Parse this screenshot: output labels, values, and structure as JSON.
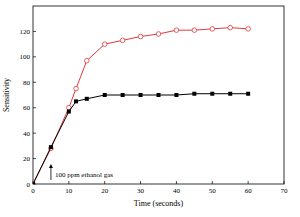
{
  "chart_data": {
    "type": "line",
    "x_label": "Time (seconds)",
    "y_label": "Sensitivity",
    "x": [
      0,
      5,
      10,
      12,
      15,
      20,
      25,
      30,
      35,
      40,
      45,
      50,
      55,
      60
    ],
    "series": [
      {
        "color": "#e03a3a",
        "marker": "open_circle",
        "line_style": "solid",
        "values": [
          0,
          28,
          60,
          75,
          97,
          110,
          113,
          116,
          118,
          121,
          121,
          122,
          123,
          122
        ]
      },
      {
        "color": "#000000",
        "marker": "square",
        "line_style": "solid",
        "values": [
          0,
          29,
          57,
          65,
          67,
          70,
          70,
          70,
          70,
          70,
          71,
          71,
          71,
          71
        ]
      }
    ],
    "xlim": [
      0,
      70
    ],
    "xticks": [
      0,
      10,
      20,
      30,
      40,
      50,
      60,
      70
    ],
    "ylim": [
      0,
      140
    ],
    "yticks": [
      0,
      20,
      40,
      60,
      80,
      100,
      120
    ],
    "grid": false,
    "annotations": [
      {
        "text": "100 ppm ethanol gas",
        "x": 5
      }
    ]
  }
}
